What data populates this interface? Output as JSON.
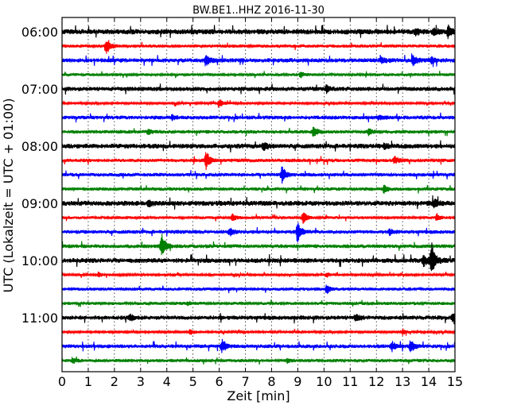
{
  "chart_data": {
    "type": "line",
    "title": "BW.BE1..HHZ 2016-11-30",
    "xlabel": "Zeit  [min]",
    "ylabel": "UTC (Lokalzeit = UTC + 01:00)",
    "xlim": [
      0,
      15
    ],
    "x_ticks": [
      "0",
      "1",
      "2",
      "3",
      "4",
      "5",
      "6",
      "7",
      "8",
      "9",
      "10",
      "11",
      "12",
      "13",
      "14",
      "15"
    ],
    "y_tick_labels": [
      {
        "row": 0,
        "label": "06:00"
      },
      {
        "row": 4,
        "label": "07:00"
      },
      {
        "row": 8,
        "label": "08:00"
      },
      {
        "row": 12,
        "label": "09:00"
      },
      {
        "row": 16,
        "label": "10:00"
      },
      {
        "row": 20,
        "label": "11:00"
      }
    ],
    "grid": "dotted vertical and horizontal",
    "colors": [
      "#000000",
      "#ff0000",
      "#0000ff",
      "#008000"
    ],
    "series": [
      {
        "start": "06:00",
        "color": "#000000",
        "noise": 2.2,
        "events": [
          {
            "t": 13.5,
            "amp": 4
          },
          {
            "t": 14.2,
            "amp": 5
          },
          {
            "t": 14.75,
            "amp": 8
          }
        ]
      },
      {
        "start": "06:15",
        "color": "#ff0000",
        "noise": 1.3,
        "events": [
          {
            "t": 1.7,
            "amp": 10
          }
        ]
      },
      {
        "start": "06:30",
        "color": "#0000ff",
        "noise": 1.8,
        "events": [
          {
            "t": 5.5,
            "amp": 8
          },
          {
            "t": 12.2,
            "amp": 5
          },
          {
            "t": 13.4,
            "amp": 7
          },
          {
            "t": 14.1,
            "amp": 4
          }
        ]
      },
      {
        "start": "06:45",
        "color": "#008000",
        "noise": 1.2,
        "events": [
          {
            "t": 9.1,
            "amp": 4
          }
        ]
      },
      {
        "start": "07:00",
        "color": "#000000",
        "noise": 1.8,
        "events": [
          {
            "t": 10.1,
            "amp": 5
          }
        ]
      },
      {
        "start": "07:15",
        "color": "#ff0000",
        "noise": 1.0,
        "events": [
          {
            "t": 6.0,
            "amp": 6
          }
        ]
      },
      {
        "start": "07:30",
        "color": "#0000ff",
        "noise": 1.6,
        "events": [
          {
            "t": 4.2,
            "amp": 3
          },
          {
            "t": 12.1,
            "amp": 3
          }
        ]
      },
      {
        "start": "07:45",
        "color": "#008000",
        "noise": 1.5,
        "events": [
          {
            "t": 3.3,
            "amp": 4
          },
          {
            "t": 9.6,
            "amp": 7
          },
          {
            "t": 11.7,
            "amp": 4
          }
        ]
      },
      {
        "start": "08:00",
        "color": "#000000",
        "noise": 2.0,
        "events": [
          {
            "t": 7.7,
            "amp": 6
          },
          {
            "t": 12.3,
            "amp": 4
          }
        ]
      },
      {
        "start": "08:15",
        "color": "#ff0000",
        "noise": 1.5,
        "events": [
          {
            "t": 5.5,
            "amp": 12
          },
          {
            "t": 12.7,
            "amp": 5
          }
        ]
      },
      {
        "start": "08:30",
        "color": "#0000ff",
        "noise": 1.5,
        "events": [
          {
            "t": 8.4,
            "amp": 11
          }
        ]
      },
      {
        "start": "08:45",
        "color": "#008000",
        "noise": 1.4,
        "events": [
          {
            "t": 12.3,
            "amp": 6
          }
        ]
      },
      {
        "start": "09:00",
        "color": "#000000",
        "noise": 2.1,
        "events": [
          {
            "t": 3.3,
            "amp": 4
          },
          {
            "t": 14.2,
            "amp": 5
          }
        ]
      },
      {
        "start": "09:15",
        "color": "#ff0000",
        "noise": 1.2,
        "events": [
          {
            "t": 6.5,
            "amp": 5
          },
          {
            "t": 9.2,
            "amp": 8
          },
          {
            "t": 14.3,
            "amp": 5
          }
        ]
      },
      {
        "start": "09:30",
        "color": "#0000ff",
        "noise": 1.6,
        "events": [
          {
            "t": 6.4,
            "amp": 5
          },
          {
            "t": 9.0,
            "amp": 13
          },
          {
            "t": 12.5,
            "amp": 4
          }
        ]
      },
      {
        "start": "09:45",
        "color": "#008000",
        "noise": 1.6,
        "events": [
          {
            "t": 3.8,
            "amp": 16
          }
        ]
      },
      {
        "start": "10:00",
        "color": "#000000",
        "noise": 2.0,
        "events": [
          {
            "t": 13.8,
            "amp": 8
          },
          {
            "t": 14.1,
            "amp": 24
          }
        ]
      },
      {
        "start": "10:15",
        "color": "#ff0000",
        "noise": 1.0,
        "events": [
          {
            "t": 1.4,
            "amp": 3
          },
          {
            "t": 10.1,
            "amp": 3
          }
        ]
      },
      {
        "start": "10:30",
        "color": "#0000ff",
        "noise": 1.3,
        "events": [
          {
            "t": 10.1,
            "amp": 6
          }
        ]
      },
      {
        "start": "10:45",
        "color": "#008000",
        "noise": 1.3,
        "events": [
          {
            "t": 4.8,
            "amp": 3
          }
        ]
      },
      {
        "start": "11:00",
        "color": "#000000",
        "noise": 1.8,
        "events": [
          {
            "t": 2.6,
            "amp": 5
          },
          {
            "t": 11.2,
            "amp": 5
          },
          {
            "t": 14.9,
            "amp": 6
          }
        ]
      },
      {
        "start": "11:15",
        "color": "#ff0000",
        "noise": 1.0,
        "events": [
          {
            "t": 4.9,
            "amp": 4
          },
          {
            "t": 13.0,
            "amp": 4
          }
        ]
      },
      {
        "start": "11:30",
        "color": "#0000ff",
        "noise": 1.6,
        "events": [
          {
            "t": 6.1,
            "amp": 9
          },
          {
            "t": 12.6,
            "amp": 6
          },
          {
            "t": 13.3,
            "amp": 9
          }
        ]
      },
      {
        "start": "11:45",
        "color": "#008000",
        "noise": 1.3,
        "events": [
          {
            "t": 0.4,
            "amp": 4
          },
          {
            "t": 8.6,
            "amp": 3
          }
        ]
      }
    ]
  }
}
